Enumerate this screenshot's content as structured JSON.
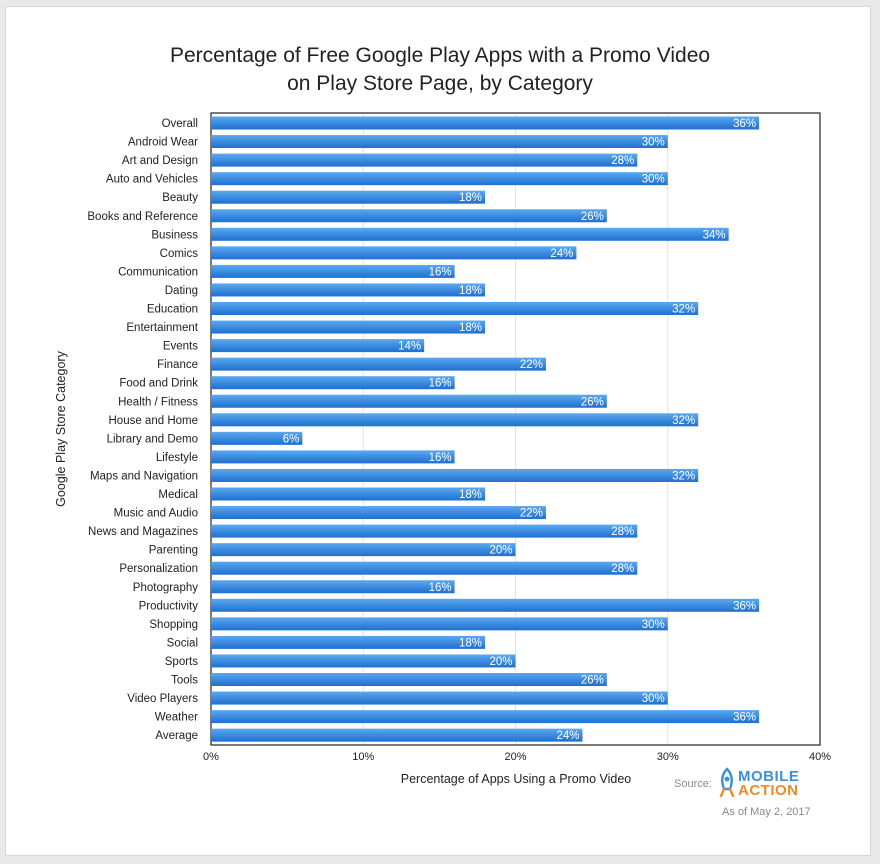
{
  "colors": {
    "bar_top": "#5ba9ef",
    "bar_bottom": "#1f6fd0",
    "logo_blue": "#3d8fd6",
    "logo_orange": "#f08a24"
  },
  "chart_data": {
    "type": "bar",
    "orientation": "horizontal",
    "title": "Percentage of Free Google Play Apps with a Promo Video\non Play Store Page, by Category",
    "xlabel": "Percentage of Apps Using a Promo Video",
    "ylabel": "Google Play Store Category",
    "xlim": [
      0,
      40
    ],
    "xticks": [
      "0%",
      "10%",
      "20%",
      "30%",
      "40%"
    ],
    "grid": true,
    "categories": [
      "Overall",
      "Android Wear",
      "Art and Design",
      "Auto and Vehicles",
      "Beauty",
      "Books and Reference",
      "Business",
      "Comics",
      "Communication",
      "Dating",
      "Education",
      "Entertainment",
      "Events",
      "Finance",
      "Food and Drink",
      "Health / Fitness",
      "House and Home",
      "Library and Demo",
      "Lifestyle",
      "Maps and Navigation",
      "Medical",
      "Music and Audio",
      "News and Magazines",
      "Parenting",
      "Personalization",
      "Photography",
      "Productivity",
      "Shopping",
      "Social",
      "Sports",
      "Tools",
      "Video Players",
      "Weather",
      "Average"
    ],
    "values": [
      36,
      30,
      28,
      30,
      18,
      26,
      34,
      24,
      16,
      18,
      32,
      18,
      14,
      22,
      16,
      26,
      32,
      6,
      16,
      32,
      18,
      22,
      28,
      20,
      28,
      16,
      36,
      30,
      18,
      20,
      26,
      30,
      36,
      24.4
    ],
    "data_labels": [
      "36%",
      "30%",
      "28%",
      "30%",
      "18%",
      "26%",
      "34%",
      "24%",
      "16%",
      "18%",
      "32%",
      "18%",
      "14%",
      "22%",
      "16%",
      "26%",
      "32%",
      "6%",
      "16%",
      "32%",
      "18%",
      "22%",
      "28%",
      "20%",
      "28%",
      "16%",
      "36%",
      "30%",
      "18%",
      "20%",
      "26%",
      "30%",
      "36%",
      "24%"
    ]
  },
  "footer": {
    "source_label": "Source:",
    "logo_line1": "MOBILE",
    "logo_line2": "ACTION",
    "as_of": "As of May 2, 2017"
  }
}
